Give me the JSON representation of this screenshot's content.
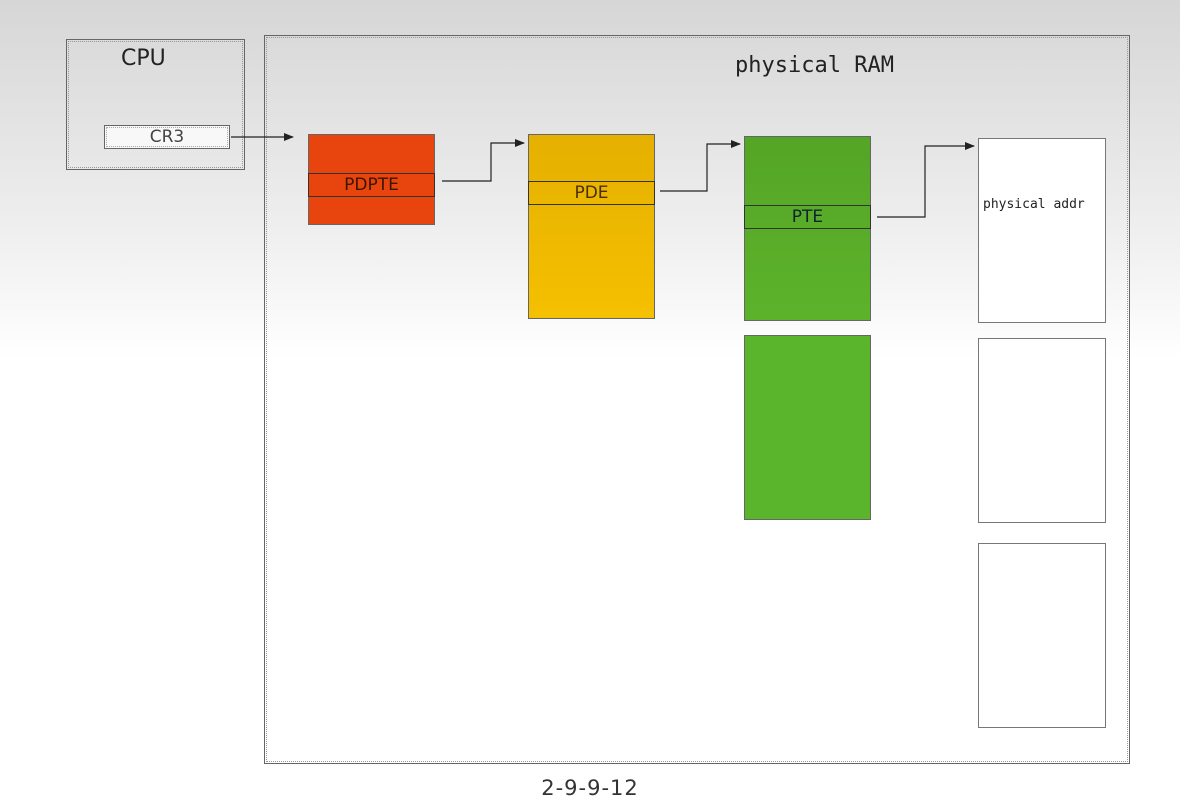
{
  "cpu": {
    "label": "CPU",
    "register": "CR3"
  },
  "ram": {
    "label": "physical RAM"
  },
  "tables": {
    "pdpte": "PDPTE",
    "pde": "PDE",
    "pte": "PTE"
  },
  "page": {
    "label": "physical addr"
  },
  "caption": "2-9-9-12",
  "colors": {
    "pdpt": "#e8450e",
    "pd": "#f0b800",
    "pt": "#5ab52c"
  }
}
